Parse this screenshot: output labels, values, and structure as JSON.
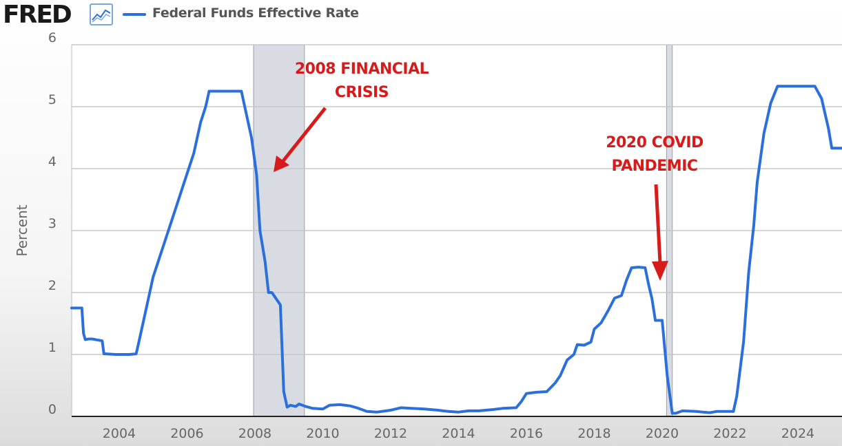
{
  "header": {
    "logo": "FRED",
    "logo_icon": "line-graph-icon",
    "legend_label": "Federal Funds Effective Rate"
  },
  "colors": {
    "series": "#2a6fdb",
    "annotation": "#d71a1a",
    "recession_shade": "#c8ccd4"
  },
  "chart_data": {
    "type": "line",
    "ylabel": "Percent",
    "ylim": [
      0,
      6
    ],
    "xlim": [
      2002.6,
      2025.3
    ],
    "yticks": [
      "0",
      "1",
      "2",
      "3",
      "4",
      "5",
      "6"
    ],
    "xticks": [
      "2004",
      "2006",
      "2008",
      "2010",
      "2012",
      "2014",
      "2016",
      "2018",
      "2020",
      "2022",
      "2024"
    ],
    "grid": true,
    "recessions": [
      [
        2007.96,
        2009.46
      ],
      [
        2020.13,
        2020.3
      ]
    ],
    "series": [
      {
        "name": "Federal Funds Effective Rate",
        "x": [
          2002.6,
          2002.9,
          2002.95,
          2003.0,
          2003.1,
          2003.2,
          2003.5,
          2003.55,
          2003.6,
          2003.9,
          2004.0,
          2004.3,
          2004.5,
          2004.6,
          2004.8,
          2005.0,
          2005.3,
          2005.6,
          2005.9,
          2006.2,
          2006.4,
          2006.55,
          2006.65,
          2007.0,
          2007.3,
          2007.6,
          2007.7,
          2007.9,
          2008.05,
          2008.15,
          2008.3,
          2008.4,
          2008.5,
          2008.75,
          2008.85,
          2008.95,
          2009.05,
          2009.2,
          2009.3,
          2009.5,
          2009.7,
          2010.0,
          2010.2,
          2010.5,
          2010.8,
          2011.0,
          2011.3,
          2011.6,
          2012.0,
          2012.3,
          2012.6,
          2013.0,
          2013.4,
          2013.7,
          2014.0,
          2014.3,
          2014.6,
          2015.0,
          2015.3,
          2015.7,
          2015.85,
          2016.0,
          2016.3,
          2016.6,
          2016.85,
          2017.0,
          2017.2,
          2017.4,
          2017.5,
          2017.7,
          2017.9,
          2018.0,
          2018.2,
          2018.4,
          2018.6,
          2018.8,
          2018.95,
          2019.1,
          2019.3,
          2019.5,
          2019.6,
          2019.7,
          2019.8,
          2020.0,
          2020.15,
          2020.3,
          2020.4,
          2020.6,
          2021.0,
          2021.4,
          2021.6,
          2021.9,
          2022.1,
          2022.2,
          2022.4,
          2022.55,
          2022.7,
          2022.8,
          2023.0,
          2023.2,
          2023.4,
          2023.55,
          2024.0,
          2024.5,
          2024.7,
          2024.9,
          2025.0,
          2025.3
        ],
        "values": [
          1.75,
          1.75,
          1.34,
          1.24,
          1.25,
          1.25,
          1.22,
          1.01,
          1.01,
          1.0,
          1.0,
          1.0,
          1.01,
          1.25,
          1.75,
          2.25,
          2.75,
          3.25,
          3.75,
          4.25,
          4.75,
          5.0,
          5.25,
          5.25,
          5.25,
          5.25,
          5.0,
          4.5,
          3.9,
          3.0,
          2.5,
          2.0,
          2.0,
          1.8,
          0.4,
          0.15,
          0.18,
          0.16,
          0.2,
          0.16,
          0.13,
          0.12,
          0.18,
          0.19,
          0.17,
          0.14,
          0.08,
          0.07,
          0.1,
          0.14,
          0.13,
          0.12,
          0.1,
          0.08,
          0.07,
          0.09,
          0.09,
          0.11,
          0.13,
          0.14,
          0.24,
          0.37,
          0.39,
          0.4,
          0.54,
          0.66,
          0.91,
          1.0,
          1.16,
          1.15,
          1.2,
          1.41,
          1.51,
          1.7,
          1.91,
          1.95,
          2.2,
          2.4,
          2.41,
          2.4,
          2.13,
          1.9,
          1.55,
          1.55,
          0.65,
          0.05,
          0.05,
          0.09,
          0.08,
          0.06,
          0.08,
          0.08,
          0.08,
          0.33,
          1.21,
          2.33,
          3.08,
          3.78,
          4.57,
          5.06,
          5.33,
          5.33,
          5.33,
          5.33,
          5.13,
          4.65,
          4.33,
          4.33
        ]
      }
    ]
  },
  "annotations": {
    "crisis_line1": "2008 FINANCIAL",
    "crisis_line2": "CRISIS",
    "covid_line1": "2020 COVID",
    "covid_line2": "PANDEMIC"
  }
}
